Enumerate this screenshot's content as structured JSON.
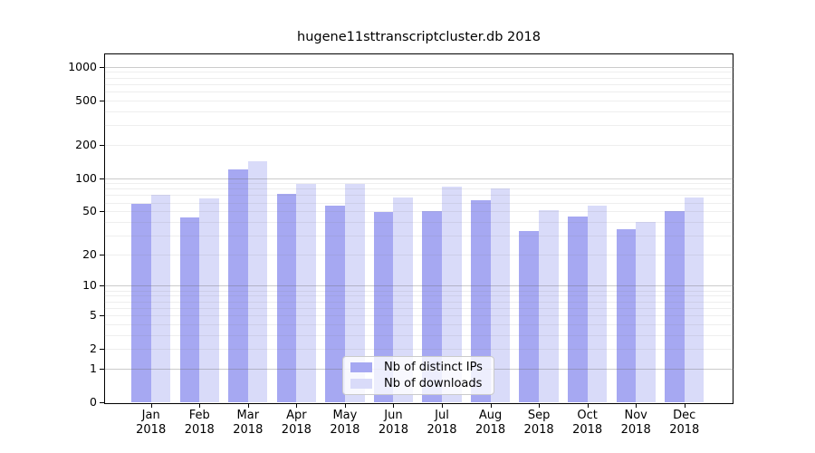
{
  "chart_data": {
    "type": "bar",
    "title": "hugene11sttranscriptcluster.db 2018",
    "categories": [
      "Jan",
      "Feb",
      "Mar",
      "Apr",
      "May",
      "Jun",
      "Jul",
      "Aug",
      "Sep",
      "Oct",
      "Nov",
      "Dec"
    ],
    "category_year": "2018",
    "series": [
      {
        "name": "Nb of distinct IPs",
        "color": "#a6a8f2",
        "values": [
          58,
          44,
          119,
          72,
          56,
          49,
          50,
          63,
          33,
          45,
          34,
          50
        ]
      },
      {
        "name": "Nb of downloads",
        "color": "#d9dbf9",
        "values": [
          71,
          66,
          143,
          89,
          88,
          67,
          83,
          80,
          51,
          56,
          40,
          67
        ]
      }
    ],
    "y_scale": "log1p",
    "y_ticks": [
      0,
      1,
      2,
      5,
      10,
      20,
      50,
      100,
      200,
      500,
      1000
    ],
    "ylim": [
      0,
      1000
    ],
    "grid": true,
    "legend_position": "bottom-center-inside",
    "axis_color": "#000000",
    "background_color": "#ffffff"
  }
}
